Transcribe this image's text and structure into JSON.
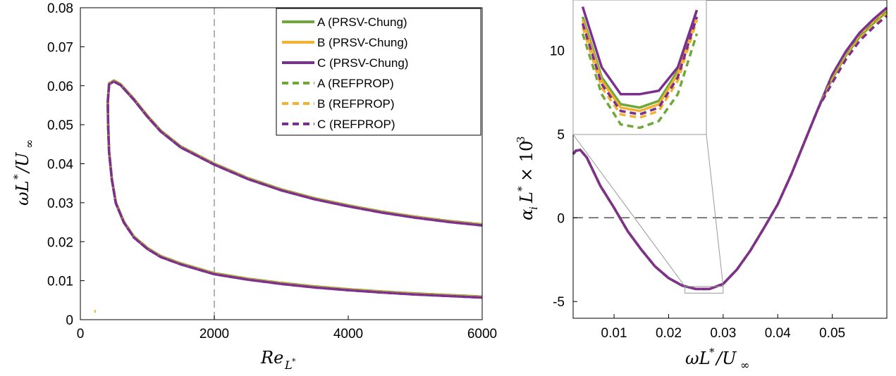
{
  "colors": {
    "A": "#6fa83a",
    "B": "#f2b130",
    "C": "#7b2f8f",
    "axis": "#000000",
    "ref": "#999999"
  },
  "legend": [
    {
      "label": "A (PRSV-Chung)",
      "series": "A",
      "style": "solid"
    },
    {
      "label": "B (PRSV-Chung)",
      "series": "B",
      "style": "solid"
    },
    {
      "label": "C (PRSV-Chung)",
      "series": "C",
      "style": "solid"
    },
    {
      "label": "A (REFPROP)",
      "series": "A",
      "style": "dashed"
    },
    {
      "label": "B (REFPROP)",
      "series": "B",
      "style": "dashed"
    },
    {
      "label": "C (REFPROP)",
      "series": "C",
      "style": "dashed"
    }
  ],
  "chart_data": [
    {
      "type": "line",
      "panel": "left",
      "xlabel": "Re_{L*}",
      "ylabel": "ωL*/U∞",
      "xlim": [
        0,
        6000
      ],
      "ylim": [
        0,
        0.08
      ],
      "xticks": [
        "0",
        "2000",
        "4000",
        "6000"
      ],
      "yticks": [
        "0",
        "0.01",
        "0.02",
        "0.03",
        "0.04",
        "0.05",
        "0.06",
        "0.07",
        "0.08"
      ],
      "reference_vline_x": 2000,
      "legend_position": "top-right",
      "neutral_curve": {
        "upper_branch": [
          [
            410,
            0.056
          ],
          [
            430,
            0.0605
          ],
          [
            500,
            0.0612
          ],
          [
            600,
            0.0603
          ],
          [
            800,
            0.0565
          ],
          [
            1000,
            0.0522
          ],
          [
            1200,
            0.0484
          ],
          [
            1500,
            0.0443
          ],
          [
            2000,
            0.0399
          ],
          [
            2500,
            0.0362
          ],
          [
            3000,
            0.0333
          ],
          [
            3500,
            0.031
          ],
          [
            4000,
            0.0292
          ],
          [
            4500,
            0.0276
          ],
          [
            5000,
            0.0263
          ],
          [
            5500,
            0.0252
          ],
          [
            6000,
            0.0243
          ]
        ],
        "lower_branch": [
          [
            410,
            0.056
          ],
          [
            415,
            0.05
          ],
          [
            430,
            0.043
          ],
          [
            470,
            0.036
          ],
          [
            530,
            0.03
          ],
          [
            650,
            0.025
          ],
          [
            800,
            0.0212
          ],
          [
            1000,
            0.0183
          ],
          [
            1200,
            0.0162
          ],
          [
            1500,
            0.0143
          ],
          [
            2000,
            0.0118
          ],
          [
            2500,
            0.0104
          ],
          [
            3000,
            0.0093
          ],
          [
            3500,
            0.0084
          ],
          [
            4000,
            0.0077
          ],
          [
            4500,
            0.0071
          ],
          [
            5000,
            0.0066
          ],
          [
            5500,
            0.0062
          ],
          [
            6000,
            0.0058
          ]
        ]
      }
    },
    {
      "type": "line",
      "panel": "right",
      "xlabel": "ωL*/U∞",
      "ylabel": "α_i L* × 10^3",
      "xlim": [
        0.0025,
        0.06
      ],
      "ylim": [
        -6,
        13
      ],
      "xticks": [
        "0.01",
        "0.02",
        "0.03",
        "0.04",
        "0.05"
      ],
      "yticks": [
        "-5",
        "0",
        "5",
        "10"
      ],
      "reference_hline_y": 0,
      "growth_curve": [
        [
          0.0025,
          3.8
        ],
        [
          0.003,
          4.0
        ],
        [
          0.0038,
          4.05
        ],
        [
          0.005,
          3.6
        ],
        [
          0.0075,
          1.9
        ],
        [
          0.01,
          0.6
        ],
        [
          0.0125,
          -0.8
        ],
        [
          0.015,
          -1.9
        ],
        [
          0.0175,
          -2.9
        ],
        [
          0.02,
          -3.6
        ],
        [
          0.0225,
          -4.05
        ],
        [
          0.025,
          -4.25
        ],
        [
          0.0275,
          -4.25
        ],
        [
          0.03,
          -3.95
        ],
        [
          0.0325,
          -3.1
        ],
        [
          0.035,
          -1.95
        ],
        [
          0.0375,
          -0.6
        ],
        [
          0.04,
          0.8
        ],
        [
          0.0425,
          2.6
        ],
        [
          0.045,
          4.6
        ],
        [
          0.0475,
          6.6
        ],
        [
          0.05,
          8.3
        ],
        [
          0.0525,
          9.7
        ],
        [
          0.055,
          10.8
        ],
        [
          0.0575,
          11.6
        ],
        [
          0.06,
          12.3
        ]
      ],
      "inset": {
        "zoom_xlim": [
          0.023,
          0.03
        ],
        "zoom_ylim": [
          -4.5,
          -4.1
        ],
        "curves": {
          "A_solid": [
            [
              0.0235,
              -4.15
            ],
            [
              0.0245,
              -4.33
            ],
            [
              0.0255,
              -4.41
            ],
            [
              0.0265,
              -4.42
            ],
            [
              0.0275,
              -4.4
            ],
            [
              0.0285,
              -4.31
            ],
            [
              0.0295,
              -4.13
            ]
          ],
          "B_solid": [
            [
              0.0235,
              -4.16
            ],
            [
              0.0245,
              -4.34
            ],
            [
              0.0255,
              -4.42
            ],
            [
              0.0265,
              -4.43
            ],
            [
              0.0275,
              -4.41
            ],
            [
              0.0285,
              -4.32
            ],
            [
              0.0295,
              -4.15
            ]
          ],
          "C_solid": [
            [
              0.0235,
              -4.12
            ],
            [
              0.0245,
              -4.3
            ],
            [
              0.0255,
              -4.38
            ],
            [
              0.0265,
              -4.38
            ],
            [
              0.0275,
              -4.37
            ],
            [
              0.0285,
              -4.3
            ],
            [
              0.0295,
              -4.13
            ]
          ],
          "A_dashed": [
            [
              0.0235,
              -4.2
            ],
            [
              0.0245,
              -4.38
            ],
            [
              0.0255,
              -4.47
            ],
            [
              0.0265,
              -4.48
            ],
            [
              0.0275,
              -4.46
            ],
            [
              0.0285,
              -4.38
            ],
            [
              0.0295,
              -4.2
            ]
          ],
          "B_dashed": [
            [
              0.0235,
              -4.18
            ],
            [
              0.0245,
              -4.36
            ],
            [
              0.0255,
              -4.44
            ],
            [
              0.0265,
              -4.45
            ],
            [
              0.0275,
              -4.43
            ],
            [
              0.0285,
              -4.34
            ],
            [
              0.0295,
              -4.16
            ]
          ],
          "C_dashed": [
            [
              0.0235,
              -4.17
            ],
            [
              0.0245,
              -4.35
            ],
            [
              0.0255,
              -4.43
            ],
            [
              0.0265,
              -4.44
            ],
            [
              0.0275,
              -4.42
            ],
            [
              0.0285,
              -4.33
            ],
            [
              0.0295,
              -4.15
            ]
          ]
        }
      }
    }
  ]
}
